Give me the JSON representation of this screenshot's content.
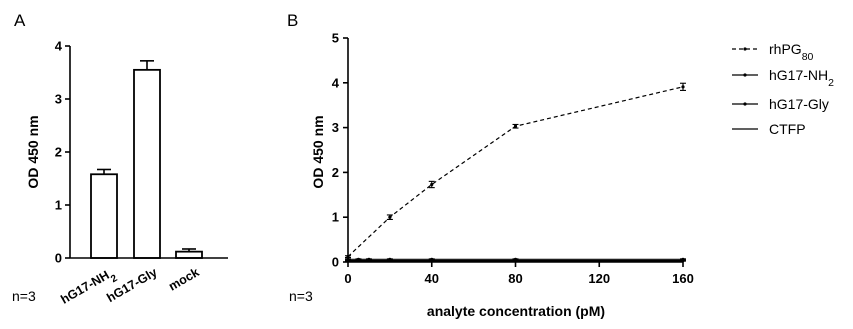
{
  "chart_data": [
    {
      "type": "bar",
      "panel": "A",
      "categories": [
        "hG17-NH₂",
        "hG17-Gly",
        "mock"
      ],
      "values": [
        1.58,
        3.55,
        0.12
      ],
      "errors": [
        0.09,
        0.17,
        0.05
      ],
      "ylabel": "OD 450 nm",
      "ylim": [
        0,
        4
      ],
      "yticks": [
        "0",
        "1",
        "2",
        "3",
        "4"
      ],
      "annotation": "n=3",
      "grid": false
    },
    {
      "type": "line",
      "panel": "B",
      "xlabel": "analyte concentration (pM)",
      "ylabel": "OD 450 nm",
      "xlim": [
        0,
        160
      ],
      "ylim": [
        0,
        5
      ],
      "xticks": [
        "0",
        "40",
        "80",
        "120",
        "160"
      ],
      "yticks": [
        "0",
        "1",
        "2",
        "3",
        "4",
        "5"
      ],
      "annotation": "n=3",
      "legend_position": "right",
      "grid": false,
      "series": [
        {
          "name": "rhPG",
          "name_subscript": "80",
          "style": "dashed",
          "x": [
            0,
            20,
            40,
            80,
            160
          ],
          "y": [
            0.12,
            1.0,
            1.73,
            3.03,
            3.91
          ],
          "err": [
            0.02,
            0.05,
            0.07,
            0.04,
            0.08
          ]
        },
        {
          "name": "hG17-NH",
          "name_subscript": "2",
          "style": "solid",
          "x": [
            0,
            5,
            10,
            20,
            40,
            80,
            160
          ],
          "y": [
            0.06,
            0.06,
            0.06,
            0.06,
            0.06,
            0.06,
            0.06
          ],
          "err": [
            0.01,
            0.01,
            0.01,
            0.01,
            0.01,
            0.01,
            0.01
          ]
        },
        {
          "name": "hG17-Gly",
          "style": "solid",
          "x": [
            0,
            5,
            10,
            20,
            40,
            80,
            160
          ],
          "y": [
            0.03,
            0.03,
            0.03,
            0.03,
            0.03,
            0.03,
            0.03
          ],
          "err": [
            0.01,
            0.01,
            0.01,
            0.01,
            0.01,
            0.01,
            0.01
          ]
        },
        {
          "name": "CTFP",
          "style": "solid",
          "x": [
            0,
            160
          ],
          "y": [
            0.02,
            0.02
          ],
          "err": [
            0,
            0
          ]
        }
      ]
    }
  ]
}
